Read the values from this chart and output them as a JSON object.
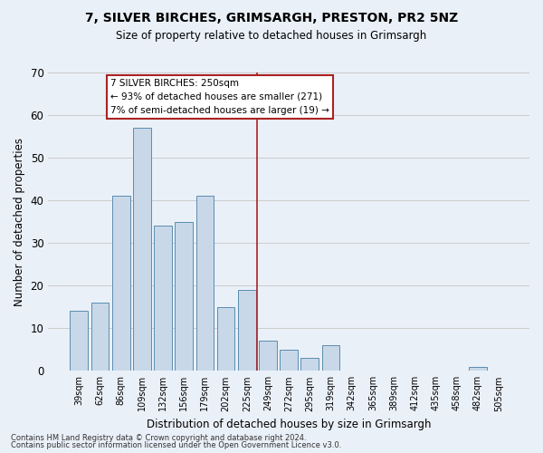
{
  "title1": "7, SILVER BIRCHES, GRIMSARGH, PRESTON, PR2 5NZ",
  "title2": "Size of property relative to detached houses in Grimsargh",
  "xlabel": "Distribution of detached houses by size in Grimsargh",
  "ylabel": "Number of detached properties",
  "bar_labels": [
    "39sqm",
    "62sqm",
    "86sqm",
    "109sqm",
    "132sqm",
    "156sqm",
    "179sqm",
    "202sqm",
    "225sqm",
    "249sqm",
    "272sqm",
    "295sqm",
    "319sqm",
    "342sqm",
    "365sqm",
    "389sqm",
    "412sqm",
    "435sqm",
    "458sqm",
    "482sqm",
    "505sqm"
  ],
  "bar_values": [
    14,
    16,
    41,
    57,
    34,
    35,
    41,
    15,
    19,
    7,
    5,
    3,
    6,
    0,
    0,
    0,
    0,
    0,
    0,
    1,
    0
  ],
  "bar_color": "#c8d8e8",
  "bar_edge_color": "#5b8db0",
  "vline_color": "#aa2222",
  "annotation_text": "7 SILVER BIRCHES: 250sqm\n← 93% of detached houses are smaller (271)\n7% of semi-detached houses are larger (19) →",
  "annotation_box_color": "#ffffff",
  "annotation_box_edge_color": "#aa2222",
  "ylim": [
    0,
    70
  ],
  "yticks": [
    0,
    10,
    20,
    30,
    40,
    50,
    60,
    70
  ],
  "grid_color": "#cccccc",
  "bg_color": "#eaf0f8",
  "footnote1": "Contains HM Land Registry data © Crown copyright and database right 2024.",
  "footnote2": "Contains public sector information licensed under the Open Government Licence v3.0."
}
